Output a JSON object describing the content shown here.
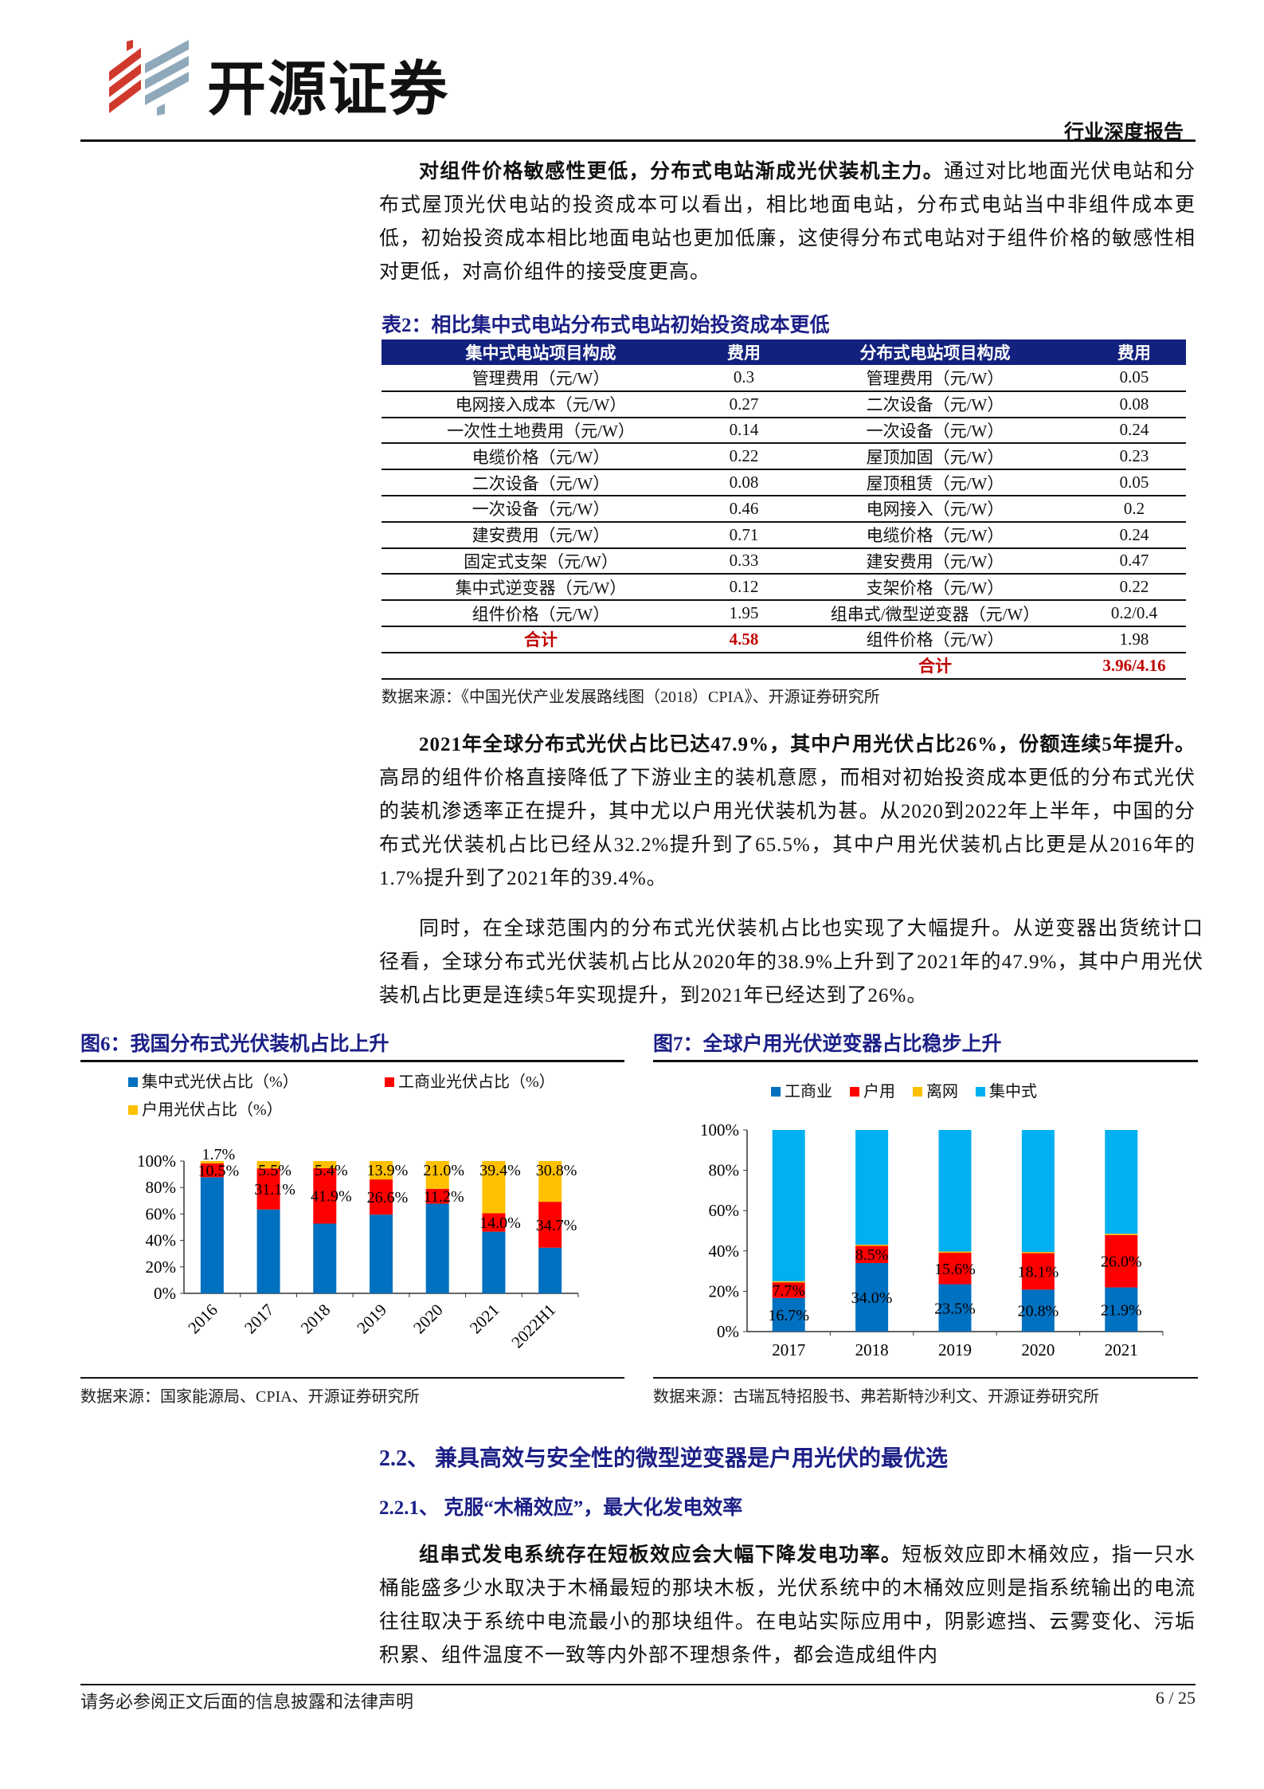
{
  "header": {
    "logo_text": "开源证券",
    "report_type": "行业深度报告"
  },
  "para1": {
    "lead": "对组件价格敏感性更低，分布式电站渐成光伏装机主力。",
    "body": "通过对比地面光伏电站和分布式屋顶光伏电站的投资成本可以看出，相比地面电站，分布式电站当中非组件成本更低，初始投资成本相比地面电站也更加低廉，这使得分布式电站对于组件价格的敏感性相对更低，对高价组件的接受度更高。"
  },
  "table2": {
    "title": "表2：相比集中式电站分布式电站初始投资成本更低",
    "headers": [
      "集中式电站项目构成",
      "费用",
      "分布式电站项目构成",
      "费用"
    ],
    "rows": [
      [
        "管理费用（元/W）",
        "0.3",
        "管理费用（元/W）",
        "0.05"
      ],
      [
        "电网接入成本（元/W）",
        "0.27",
        "二次设备（元/W）",
        "0.08"
      ],
      [
        "一次性土地费用（元/W）",
        "0.14",
        "一次设备（元/W）",
        "0.24"
      ],
      [
        "电缆价格（元/W）",
        "0.22",
        "屋顶加固（元/W）",
        "0.23"
      ],
      [
        "二次设备（元/W）",
        "0.08",
        "屋顶租赁（元/W）",
        "0.05"
      ],
      [
        "一次设备（元/W）",
        "0.46",
        "电网接入（元/W）",
        "0.2"
      ],
      [
        "建安费用（元/W）",
        "0.71",
        "电缆价格（元/W）",
        "0.24"
      ],
      [
        "固定式支架（元/W）",
        "0.33",
        "建安费用（元/W）",
        "0.47"
      ],
      [
        "集中式逆变器（元/W）",
        "0.12",
        "支架价格（元/W）",
        "0.22"
      ],
      [
        "组件价格（元/W）",
        "1.95",
        "组串式/微型逆变器（元/W）",
        "0.2/0.4"
      ],
      [
        "合计",
        "4.58",
        "组件价格（元/W）",
        "1.98"
      ],
      [
        "",
        "",
        "合计",
        "3.96/4.16"
      ]
    ],
    "source": "数据来源：《中国光伏产业发展路线图（2018）CPIA》、开源证券研究所"
  },
  "para2": {
    "lead": "2021年全球分布式光伏占比已达47.9%，其中户用光伏占比26%，份额连续5年提升。",
    "body": "高昂的组件价格直接降低了下游业主的装机意愿，而相对初始投资成本更低的分布式光伏的装机渗透率正在提升，其中尤以户用光伏装机为甚。从2020到2022年上半年，中国的分布式光伏装机占比已经从32.2%提升到了65.5%，其中户用光伏装机占比更是从2016年的1.7%提升到了2021年的39.4%。"
  },
  "para3": {
    "body": "同时，在全球范围内的分布式光伏装机占比也实现了大幅提升。从逆变器出货统计口径看，全球分布式光伏装机占比从2020年的38.9%上升到了2021年的47.9%，其中户用光伏装机占比更是连续5年实现提升，到2021年已经达到了26%。"
  },
  "colors": {
    "blue": "#0070c0",
    "red": "#ff0000",
    "yellow": "#ffc000",
    "lightblue": "#00b0f0",
    "navy": "#1b1f86"
  },
  "chart_data": [
    {
      "type": "bar",
      "stacked": true,
      "title": "图6：我国分布式光伏装机占比上升",
      "categories": [
        "2016",
        "2017",
        "2018",
        "2019",
        "2020",
        "2021",
        "2022H1"
      ],
      "yticks": [
        "0%",
        "20%",
        "40%",
        "60%",
        "80%",
        "100%"
      ],
      "ylim": [
        0,
        100
      ],
      "legend_position": "top",
      "series": [
        {
          "name": "集中式光伏占比（%）",
          "color": "#0070c0",
          "values": [
            87.8,
            63.4,
            52.7,
            59.5,
            67.8,
            46.6,
            34.5
          ],
          "labels": []
        },
        {
          "name": "工商业光伏占比（%）",
          "color": "#ff0000",
          "values": [
            10.5,
            31.1,
            41.9,
            26.6,
            11.2,
            14.0,
            34.7
          ],
          "labels": [
            "10.5%",
            "31.1%",
            "41.9%",
            "26.6%",
            "11.2%",
            "14.0%",
            "34.7%"
          ]
        },
        {
          "name": "户用光伏占比（%）",
          "color": "#ffc000",
          "values": [
            1.7,
            5.5,
            5.4,
            13.9,
            21.0,
            39.4,
            30.8
          ],
          "labels": [
            "1.7%",
            "5.5%",
            "5.4%",
            "13.9%",
            "21.0%",
            "39.4%",
            "30.8%"
          ]
        }
      ],
      "source": "数据来源：国家能源局、CPIA、开源证券研究所"
    },
    {
      "type": "bar",
      "stacked": true,
      "title": "图7：全球户用光伏逆变器占比稳步上升",
      "categories": [
        "2017",
        "2018",
        "2019",
        "2020",
        "2021"
      ],
      "yticks": [
        "0%",
        "20%",
        "40%",
        "60%",
        "80%",
        "100%"
      ],
      "ylim": [
        0,
        100
      ],
      "legend_position": "top",
      "series": [
        {
          "name": "工商业",
          "color": "#0070c0",
          "values": [
            16.7,
            34.0,
            23.5,
            20.8,
            21.9
          ],
          "labels": [
            "16.7%",
            "34.0%",
            "23.5%",
            "20.8%",
            "21.9%"
          ]
        },
        {
          "name": "户用",
          "color": "#ff0000",
          "values": [
            7.7,
            8.5,
            15.6,
            18.1,
            26.0
          ],
          "labels": [
            "7.7%",
            "8.5%",
            "15.6%",
            "18.1%",
            "26.0%"
          ]
        },
        {
          "name": "离网",
          "color": "#ffc000",
          "values": [
            0.6,
            0.6,
            0.6,
            0.6,
            0.6
          ],
          "labels": []
        },
        {
          "name": "集中式",
          "color": "#00b0f0",
          "values": [
            75.0,
            56.9,
            60.3,
            60.5,
            51.5
          ],
          "labels": []
        }
      ],
      "source": "数据来源：古瑞瓦特招股书、弗若斯特沙利文、开源证券研究所"
    }
  ],
  "section": {
    "h2": "2.2、 兼具高效与安全性的微型逆变器是户用光伏的最优选",
    "h3": "2.2.1、 克服“木桶效应”，最大化发电效率"
  },
  "para4": {
    "lead": "组串式发电系统存在短板效应会大幅下降发电功率。",
    "body": "短板效应即木桶效应，指一只水桶能盛多少水取决于木桶最短的那块木板，光伏系统中的木桶效应则是指系统输出的电流往往取决于系统中电流最小的那块组件。在电站实际应用中，阴影遮挡、云雾变化、污垢积累、组件温度不一致等内外部不理想条件，都会造成组件内"
  },
  "footer": {
    "disclaimer": "请务必参阅正文后面的信息披露和法律声明",
    "page": "6 / 25"
  }
}
